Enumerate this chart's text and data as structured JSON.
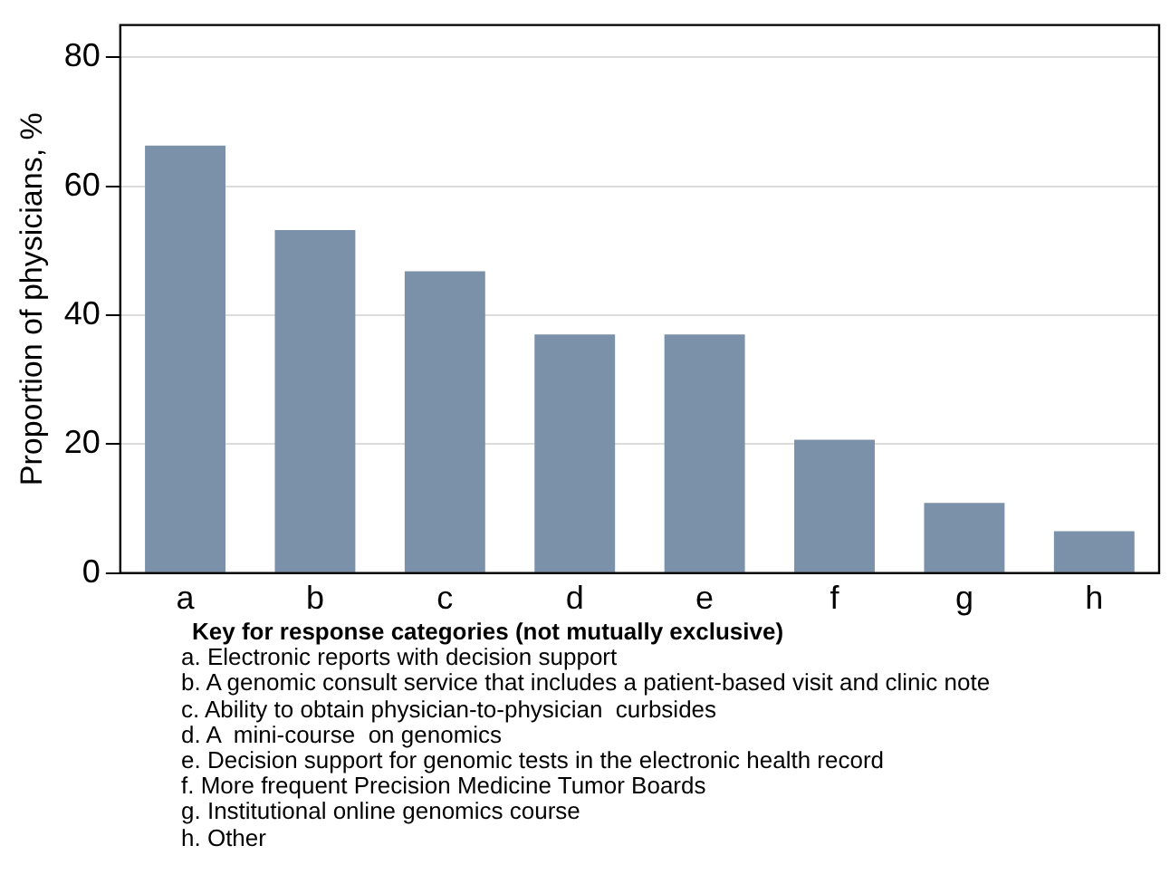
{
  "chart_data": {
    "type": "bar",
    "ylabel": "Proportion of physicians, %",
    "categories": [
      "a",
      "b",
      "c",
      "d",
      "e",
      "f",
      "g",
      "h"
    ],
    "values": [
      66.3,
      53.2,
      46.8,
      37.0,
      37.0,
      20.7,
      10.9,
      6.5
    ],
    "color": "#7b91a9",
    "ylim": [
      0,
      85
    ],
    "yticks": [
      0,
      20,
      40,
      60,
      80
    ],
    "grid": "y",
    "legend": false,
    "annotations": [
      "Key for response categories (not mutually exclusive)",
      "a. Electronic reports with decision support",
      "b. A genomic consult service that includes a patient-based visit and clinic note",
      "c. Ability to obtain physician-to-physician  curbsides",
      "d. A  mini-course  on genomics",
      "e. Decision support for genomic tests in the electronic health record",
      "f. More frequent Precision Medicine Tumor Boards",
      "g. Institutional online genomics course",
      "h. Other"
    ]
  }
}
